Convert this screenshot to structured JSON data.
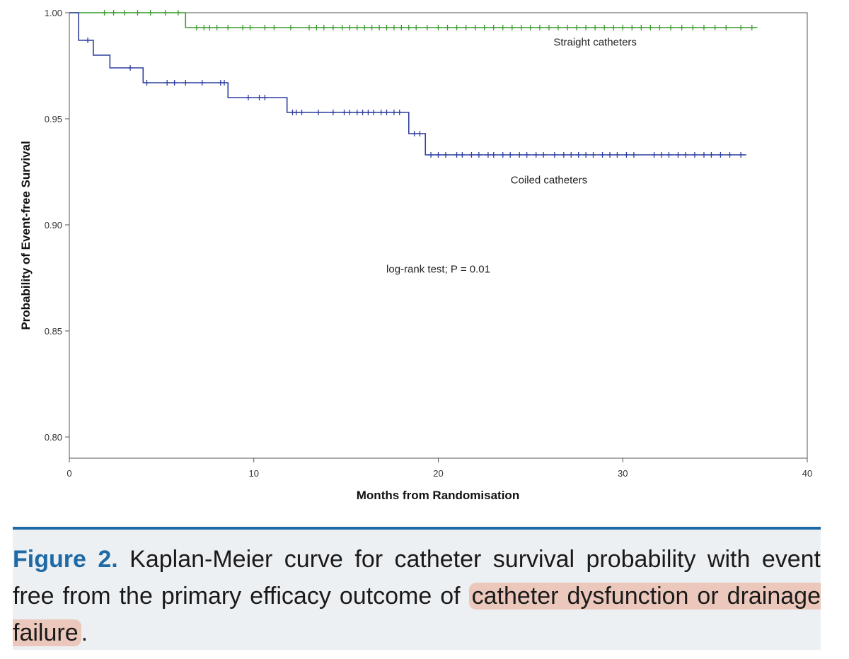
{
  "chart_data": {
    "type": "line",
    "title": "",
    "xlabel": "Months from Randomisation",
    "ylabel": "Probability of Event-free Survival",
    "xlim": [
      0,
      40
    ],
    "ylim": [
      0.79,
      1.0
    ],
    "x_ticks": [
      0,
      10,
      20,
      30,
      40
    ],
    "x_tick_labels": [
      "0",
      "10",
      "20",
      "30",
      "40"
    ],
    "y_ticks": [
      0.8,
      0.85,
      0.9,
      0.95,
      1.0
    ],
    "y_tick_labels": [
      "0.80",
      "0.85",
      "0.90",
      "0.95",
      "1.00"
    ],
    "grid": false,
    "series": [
      {
        "name": "Straight catheters",
        "color": "#3a9a2e",
        "steps": [
          [
            0,
            1.0
          ],
          [
            6.3,
            0.993
          ],
          [
            37.3,
            0.993
          ]
        ],
        "censored": [
          1.9,
          2.4,
          3.0,
          3.7,
          4.4,
          5.2,
          5.9,
          6.9,
          7.3,
          7.6,
          8.0,
          8.6,
          9.4,
          9.8,
          10.6,
          11.1,
          12.0,
          13.0,
          13.4,
          13.8,
          14.3,
          14.8,
          15.2,
          15.6,
          16.0,
          16.4,
          16.8,
          17.2,
          17.6,
          18.0,
          18.4,
          18.8,
          19.4,
          20.0,
          20.5,
          21.0,
          21.5,
          22.0,
          22.5,
          23.0,
          23.5,
          24.0,
          24.5,
          25.0,
          25.5,
          26.0,
          26.5,
          27.0,
          27.5,
          28.0,
          28.5,
          29.0,
          29.5,
          30.0,
          30.5,
          31.0,
          31.5,
          32.0,
          32.6,
          33.2,
          33.8,
          34.4,
          35.0,
          35.6,
          36.4,
          37.0
        ]
      },
      {
        "name": "Coiled catheters",
        "color": "#2f3f9e",
        "steps": [
          [
            0,
            1.0
          ],
          [
            0.5,
            0.987
          ],
          [
            1.3,
            0.98
          ],
          [
            2.2,
            0.974
          ],
          [
            4.0,
            0.967
          ],
          [
            8.6,
            0.96
          ],
          [
            11.8,
            0.953
          ],
          [
            18.4,
            0.943
          ],
          [
            19.3,
            0.933
          ],
          [
            36.7,
            0.933
          ]
        ],
        "censored": [
          1.0,
          3.3,
          4.2,
          5.3,
          5.7,
          6.3,
          7.2,
          8.2,
          8.4,
          9.7,
          10.3,
          10.6,
          12.1,
          12.3,
          12.6,
          13.5,
          14.3,
          14.9,
          15.2,
          15.6,
          15.9,
          16.2,
          16.5,
          16.9,
          17.2,
          17.6,
          17.9,
          18.7,
          19.0,
          19.6,
          20.0,
          20.4,
          21.0,
          21.3,
          21.8,
          22.2,
          22.7,
          23.0,
          23.5,
          23.9,
          24.4,
          24.8,
          25.3,
          25.7,
          26.3,
          26.8,
          27.2,
          27.6,
          28.0,
          28.4,
          28.9,
          29.3,
          29.7,
          30.2,
          30.6,
          31.7,
          32.1,
          32.5,
          33.0,
          33.4,
          33.9,
          34.4,
          34.8,
          35.3,
          35.8,
          36.4
        ]
      }
    ],
    "annotations": [
      {
        "text": "Straight catheters",
        "x": 28.5,
        "y": 0.9845
      },
      {
        "text": "Coiled catheters",
        "x": 26.0,
        "y": 0.9195
      },
      {
        "text": "log-rank test; P = 0.01",
        "x": 20.0,
        "y": 0.8775
      }
    ]
  },
  "caption": {
    "figure_label": "Figure 2.",
    "text_plain": "Kaplan-Meier curve for catheter survival probability with event free from the primary efficacy outcome of ",
    "text_highlighted": "catheter dysfunction or drainage failure",
    "text_end": ".",
    "highlight_color": "#e89678",
    "accent_color": "#1f6aa5"
  }
}
